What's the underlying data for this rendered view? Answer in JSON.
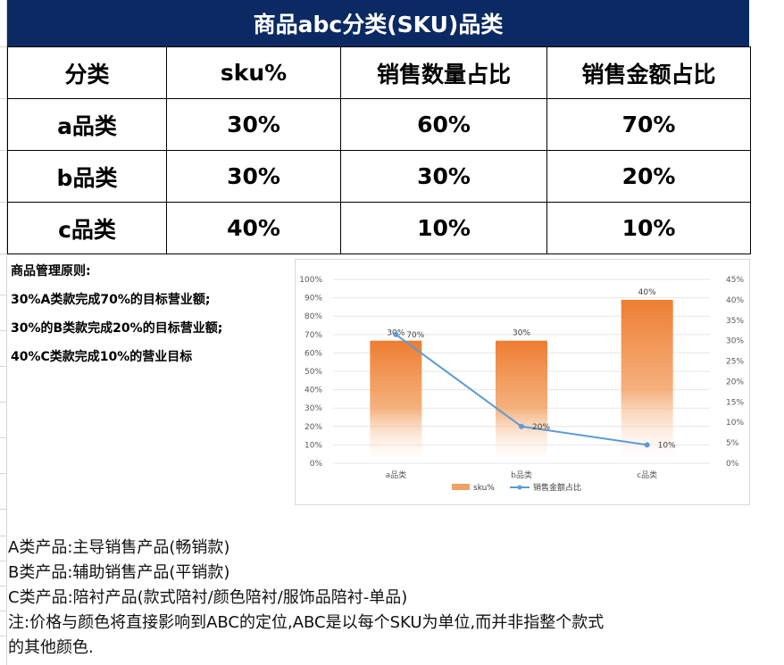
{
  "title": "商品abc分类(SKU)品类",
  "table": {
    "headers": [
      "分类",
      "sku%",
      "销售数量占比",
      "销售金额占比"
    ],
    "rows": [
      [
        "a品类",
        "30%",
        "60%",
        "70%"
      ],
      [
        "b品类",
        "30%",
        "30%",
        "20%"
      ],
      [
        "c品类",
        "40%",
        "10%",
        "10%"
      ]
    ]
  },
  "principles": {
    "heading": "商品管理原则:",
    "lines": [
      "30%A类款完成70%的目标营业额;",
      "30%的B类款完成20%的目标营业额;",
      "40%C类款完成10%的营业目标"
    ]
  },
  "chart_data": {
    "type": "bar",
    "categories": [
      "a品类",
      "b品类",
      "c品类"
    ],
    "series": [
      {
        "name": "sku%",
        "type": "bar",
        "axis": "left",
        "values": [
          30,
          30,
          40
        ],
        "labels": [
          "30%",
          "30%",
          "40%"
        ],
        "color": "#ed7d31"
      },
      {
        "name": "销售金额占比",
        "type": "line",
        "axis": "right",
        "values": [
          70,
          20,
          10
        ],
        "labels": [
          "70%",
          "20%",
          "10%"
        ],
        "color": "#5b9bd5"
      }
    ],
    "y_left": {
      "ticks": [
        "0%",
        "10%",
        "20%",
        "30%",
        "40%",
        "50%",
        "60%",
        "70%",
        "80%",
        "90%",
        "100%"
      ]
    },
    "y_right": {
      "ticks": [
        "0%",
        "5%",
        "10%",
        "15%",
        "20%",
        "25%",
        "30%",
        "35%",
        "40%",
        "45%"
      ]
    },
    "legend_position": "bottom",
    "grid": true
  },
  "notes": [
    "A类产品:主导销售产品(畅销款)",
    "B类产品:辅助销售产品(平销款)",
    "C类产品:陪衬产品(款式陪衬/颜色陪衬/服饰品陪衬-单品)",
    "注:价格与颜色将直接影响到ABC的定位,ABC是以每个SKU为单位,而并非指整个款式",
    "的其他颜色."
  ]
}
